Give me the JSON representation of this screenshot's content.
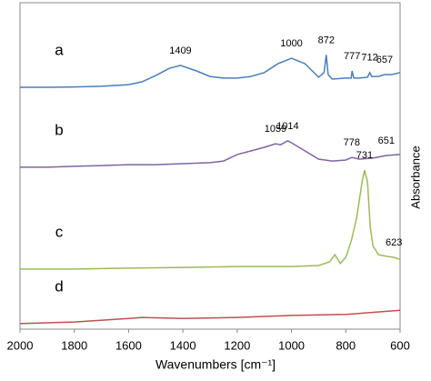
{
  "chart_data": {
    "type": "line",
    "xlabel": "Wavenumbers [cm⁻¹]",
    "ylabel": "Absorbance",
    "xlim": [
      2000,
      600
    ],
    "xticks": [
      2000,
      1800,
      1600,
      1400,
      1200,
      1000,
      800,
      600
    ],
    "ylim": [
      0,
      100
    ],
    "series": [
      {
        "name": "a",
        "color": "#4a7ebb",
        "x": [
          2000,
          1900,
          1800,
          1700,
          1600,
          1550,
          1500,
          1450,
          1409,
          1350,
          1300,
          1250,
          1200,
          1150,
          1100,
          1050,
          1000,
          950,
          900,
          880,
          872,
          865,
          850,
          800,
          780,
          777,
          770,
          750,
          720,
          712,
          705,
          680,
          657,
          630,
          600
        ],
        "values": [
          74.1,
          74.1,
          74.2,
          74.4,
          74.9,
          75.8,
          77.7,
          79.9,
          80.8,
          79.1,
          77.4,
          76.9,
          76.9,
          77.4,
          78.6,
          81.3,
          83.0,
          81.3,
          77.2,
          78.6,
          84.0,
          78.0,
          76.6,
          76.9,
          76.9,
          79.1,
          76.9,
          76.9,
          77.2,
          78.6,
          77.4,
          77.4,
          78.0,
          78.0,
          78.6
        ],
        "peaks": [
          1409,
          1000,
          872,
          777,
          712,
          657
        ]
      },
      {
        "name": "b",
        "color": "#8064a2",
        "x": [
          2000,
          1900,
          1800,
          1700,
          1600,
          1500,
          1400,
          1300,
          1250,
          1200,
          1150,
          1100,
          1059,
          1040,
          1014,
          1000,
          950,
          900,
          850,
          800,
          778,
          750,
          700,
          651,
          600
        ],
        "values": [
          49.6,
          49.6,
          49.9,
          50.1,
          50.4,
          50.4,
          50.7,
          51.0,
          51.5,
          53.5,
          54.6,
          55.7,
          56.8,
          56.5,
          57.7,
          57.1,
          54.6,
          52.1,
          51.5,
          51.8,
          52.6,
          52.1,
          52.4,
          53.2,
          53.5
        ],
        "peaks": [
          1059,
          1014,
          778,
          651
        ]
      },
      {
        "name": "c",
        "color": "#9bbb59",
        "x": [
          2000,
          1800,
          1600,
          1400,
          1200,
          1000,
          900,
          860,
          840,
          820,
          800,
          780,
          760,
          740,
          731,
          720,
          710,
          700,
          680,
          650,
          623,
          600
        ],
        "values": [
          18.4,
          18.4,
          18.7,
          18.9,
          19.2,
          19.2,
          19.5,
          20.6,
          22.8,
          20.1,
          22.0,
          27.0,
          34.0,
          45.1,
          48.7,
          45.1,
          31.2,
          25.6,
          22.8,
          22.3,
          22.0,
          21.4
        ],
        "peaks": [
          731,
          623
        ]
      },
      {
        "name": "d",
        "color": "#c0504d",
        "x": [
          2000,
          1800,
          1600,
          1550,
          1400,
          1200,
          1000,
          800,
          600
        ],
        "values": [
          1.7,
          2.2,
          3.3,
          3.6,
          3.3,
          3.6,
          4.2,
          4.5,
          5.8
        ]
      }
    ]
  }
}
